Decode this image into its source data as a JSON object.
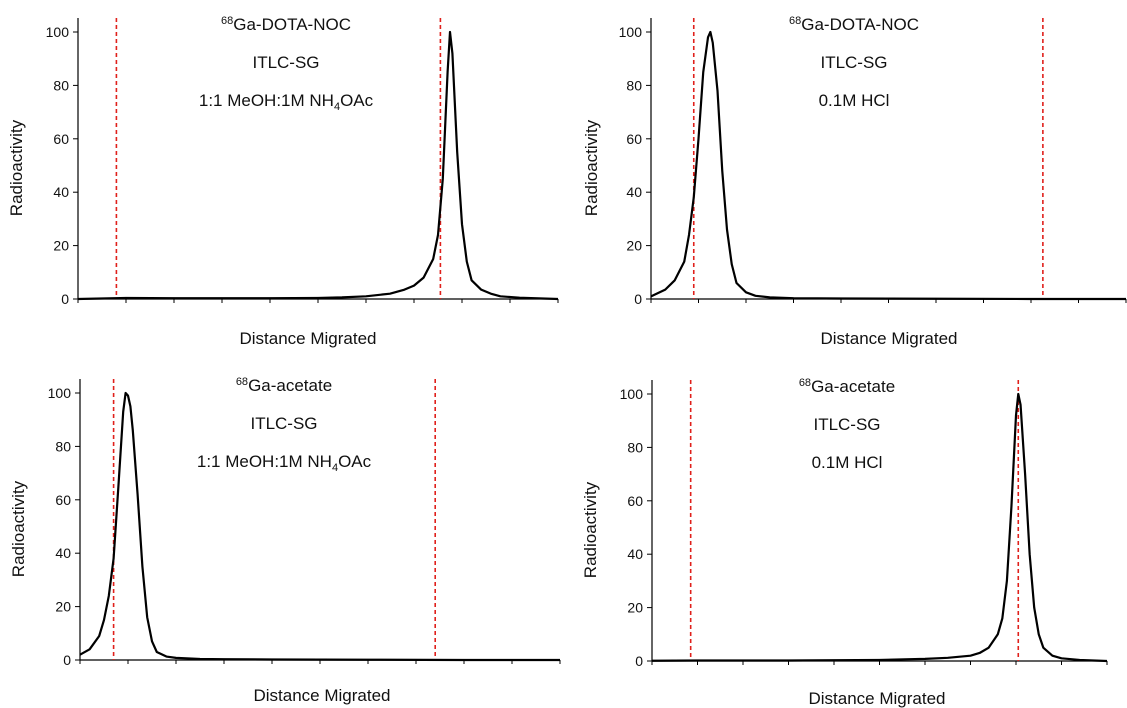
{
  "chart_data": [
    {
      "type": "line",
      "xlabel": "Distance Migrated",
      "ylabel": "Radioactivity",
      "xlim": [
        0,
        100
      ],
      "ylim": [
        0,
        100
      ],
      "yticks": [
        0,
        20,
        40,
        60,
        80,
        100
      ],
      "annotations": {
        "compound_sup": "68",
        "compound": "Ga-DOTA-NOC",
        "plate": "ITLC-SG",
        "solvent_a": "1:1 MeOH:1M NH",
        "solvent_sub": "4",
        "solvent_b": "OAc"
      },
      "markers": [
        8,
        75.5
      ],
      "peak": {
        "center": 77.5,
        "height": 100,
        "width": 1.9
      },
      "series": [
        {
          "x": [
            0,
            10,
            20,
            30,
            40,
            50,
            55,
            60,
            65,
            68,
            70,
            72,
            74,
            75,
            76,
            77,
            77.5,
            78,
            79,
            80,
            81,
            82,
            84,
            86,
            88,
            92,
            100
          ],
          "y": [
            0,
            0.4,
            0.3,
            0.3,
            0.3,
            0.4,
            0.6,
            1,
            2,
            3.5,
            5,
            8,
            15,
            24,
            45,
            85,
            100,
            92,
            55,
            28,
            14,
            7,
            3.5,
            2,
            1,
            0.5,
            0
          ]
        }
      ]
    },
    {
      "type": "line",
      "xlabel": "Distance Migrated",
      "ylabel": "Radioactivity",
      "xlim": [
        0,
        100
      ],
      "ylim": [
        0,
        100
      ],
      "yticks": [
        0,
        20,
        40,
        60,
        80,
        100
      ],
      "annotations": {
        "compound_sup": "68",
        "compound": "Ga-DOTA-NOC",
        "plate": "ITLC-SG",
        "solvent_a": "0.1M HCl",
        "solvent_sub": "",
        "solvent_b": ""
      },
      "markers": [
        9,
        82.5
      ],
      "series": [
        {
          "x": [
            0,
            3,
            5,
            7,
            8,
            9,
            10,
            11,
            12,
            12.5,
            13,
            14,
            15,
            16,
            17,
            18,
            20,
            22,
            25,
            30,
            40,
            60,
            80,
            100
          ],
          "y": [
            1,
            3.5,
            7,
            14,
            24,
            38,
            60,
            85,
            98,
            100,
            96,
            78,
            48,
            26,
            13,
            6,
            2.5,
            1.2,
            0.6,
            0.3,
            0.2,
            0.1,
            0,
            0
          ]
        }
      ]
    },
    {
      "type": "line",
      "xlabel": "Distance Migrated",
      "ylabel": "Radioactivity",
      "xlim": [
        0,
        100
      ],
      "ylim": [
        0,
        100
      ],
      "yticks": [
        0,
        20,
        40,
        60,
        80,
        100
      ],
      "annotations": {
        "compound_sup": "68",
        "compound": "Ga-acetate",
        "plate": "ITLC-SG",
        "solvent_a": "1:1 MeOH:1M NH",
        "solvent_sub": "4",
        "solvent_b": "OAc"
      },
      "markers": [
        7,
        74
      ],
      "series": [
        {
          "x": [
            0,
            2,
            4,
            5,
            6,
            7,
            8,
            9,
            9.5,
            10,
            10.5,
            11,
            12,
            13,
            14,
            15,
            16,
            18,
            20,
            25,
            30,
            40,
            60,
            80,
            100
          ],
          "y": [
            2,
            4,
            9,
            15,
            24,
            38,
            65,
            93,
            100,
            99,
            95,
            86,
            62,
            35,
            16,
            7,
            3,
            1.3,
            0.8,
            0.4,
            0.3,
            0.2,
            0.1,
            0,
            0
          ]
        }
      ]
    },
    {
      "type": "line",
      "xlabel": "Distance Migrated",
      "ylabel": "Radioactivity",
      "xlim": [
        0,
        100
      ],
      "ylim": [
        0,
        100
      ],
      "yticks": [
        0,
        20,
        40,
        60,
        80,
        100
      ],
      "annotations": {
        "compound_sup": "68",
        "compound": "Ga-acetate",
        "plate": "ITLC-SG",
        "solvent_a": "0.1M HCl",
        "solvent_sub": "",
        "solvent_b": ""
      },
      "markers": [
        8.5,
        80.5
      ],
      "series": [
        {
          "x": [
            0,
            10,
            20,
            30,
            40,
            50,
            60,
            65,
            70,
            72,
            74,
            76,
            77,
            78,
            79,
            80,
            80.5,
            81,
            82,
            83,
            84,
            85,
            86,
            88,
            90,
            94,
            100
          ],
          "y": [
            0.1,
            0.2,
            0.2,
            0.2,
            0.3,
            0.4,
            0.8,
            1.2,
            2,
            3,
            5,
            10,
            16,
            30,
            58,
            92,
            100,
            96,
            70,
            40,
            20,
            10,
            5,
            2,
            1,
            0.4,
            0
          ]
        }
      ]
    }
  ]
}
